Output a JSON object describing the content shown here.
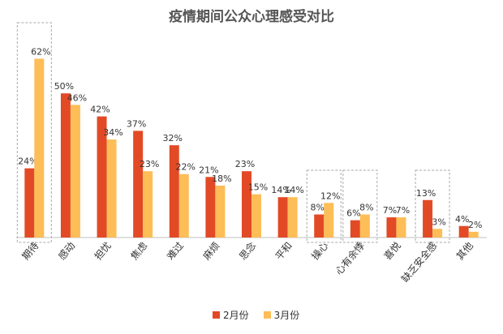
{
  "colors": {
    "feb": "#E24A26",
    "mar": "#FDBD57",
    "axis": "#BFBFBF",
    "dash": "#AAAAAA"
  },
  "chart_data": {
    "type": "bar",
    "title": "疫情期间公众心理感受对比",
    "categories": [
      "期待",
      "感动",
      "担忧",
      "焦虑",
      "难过",
      "麻烦",
      "思念",
      "平和",
      "操心",
      "心有余悸",
      "喜悦",
      "缺乏安全感",
      "其他"
    ],
    "series": [
      {
        "name": "2月份",
        "values": [
          24,
          50,
          42,
          37,
          32,
          21,
          23,
          14,
          8,
          6,
          7,
          13,
          4
        ],
        "labels": [
          "24%",
          "50%",
          "42%",
          "37%",
          "32%",
          "21%",
          "23%",
          "14%",
          "8%",
          "6%",
          "7%",
          "13%",
          "4%"
        ]
      },
      {
        "name": "3月份",
        "values": [
          62,
          46,
          34,
          23,
          22,
          18,
          15,
          14,
          12,
          8,
          7,
          3,
          2
        ],
        "labels": [
          "62%",
          "46%",
          "34%",
          "23%",
          "22%",
          "18%",
          "15%",
          "14%",
          "12%",
          "8%",
          "7%",
          "3%",
          "2%"
        ]
      }
    ],
    "ylim": [
      0,
      70
    ],
    "highlighted_categories": [
      "期待",
      "操心",
      "心有余悸",
      "缺乏安全感"
    ],
    "legend_position": "bottom"
  }
}
